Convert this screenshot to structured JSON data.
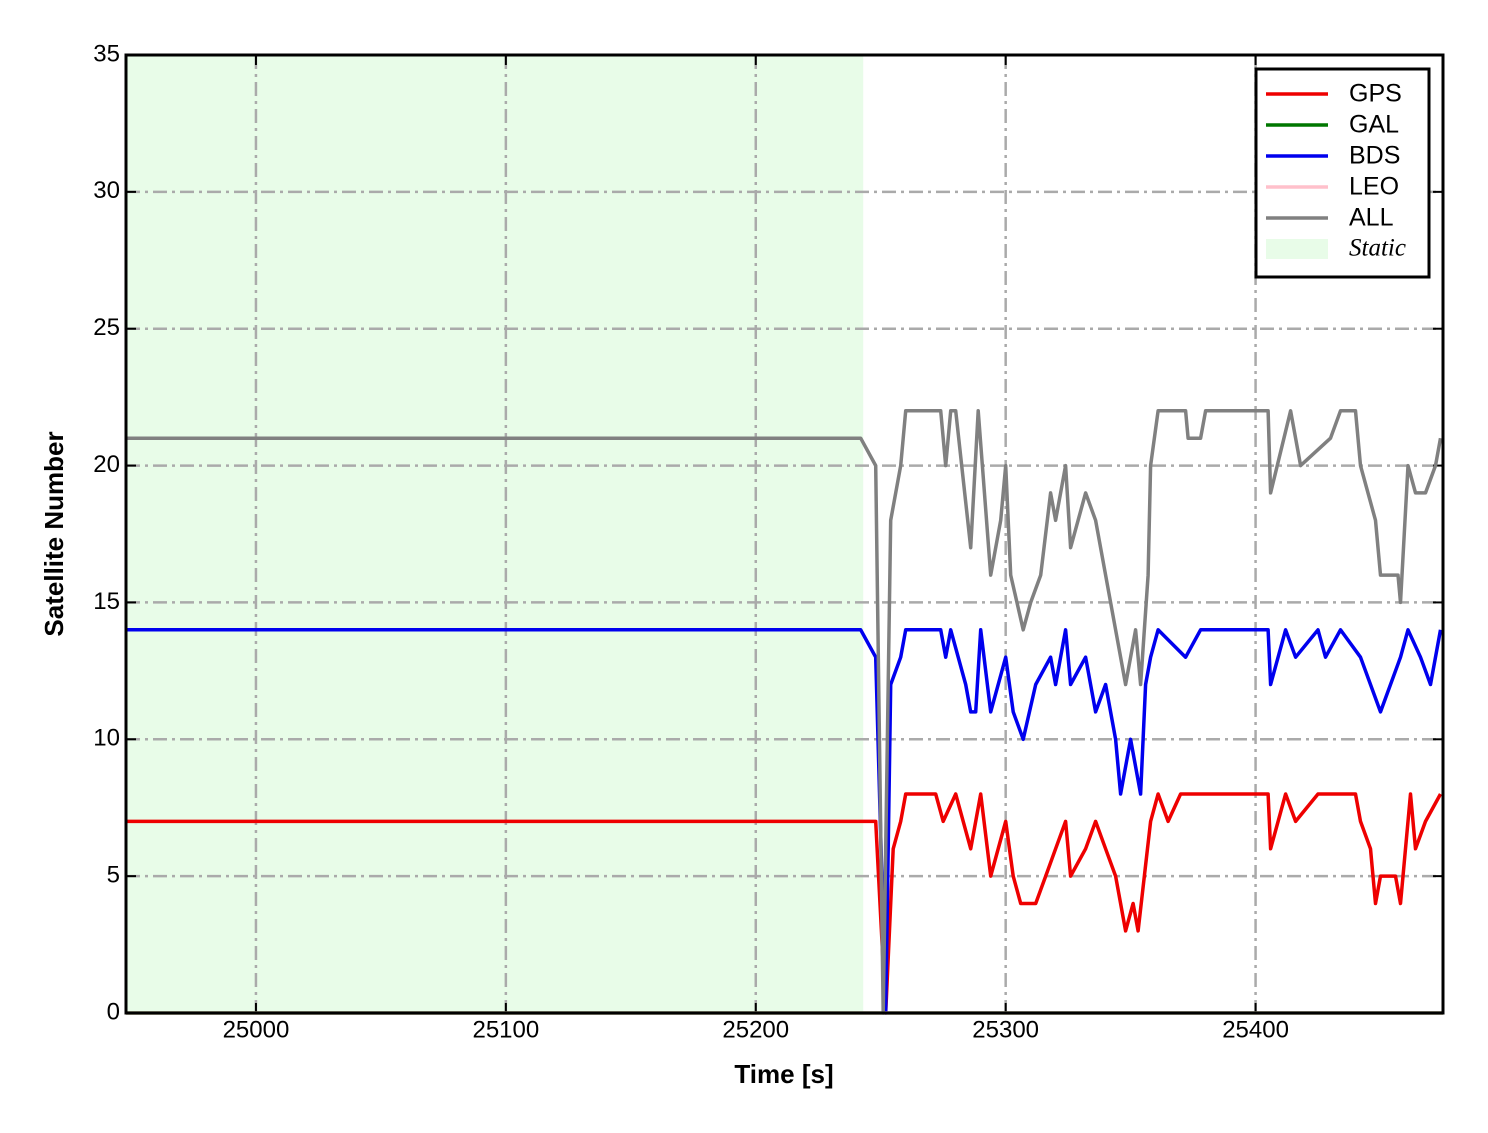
{
  "chart_data": {
    "type": "line",
    "xlabel": "Time [s]",
    "ylabel": "Satellite Number",
    "xlim": [
      24948,
      25475
    ],
    "ylim": [
      0,
      35
    ],
    "xticks": [
      25000,
      25100,
      25200,
      25300,
      25400
    ],
    "yticks": [
      0,
      5,
      10,
      15,
      20,
      25,
      30,
      35
    ],
    "grid": true,
    "legend": "upper right",
    "span": {
      "label": "Static",
      "color": "#e8fce8",
      "x": [
        24948,
        25243
      ]
    },
    "series": [
      {
        "name": "GPS",
        "color": "#ee0000",
        "x": [
          24948,
          25248,
          25252,
          25255,
          25258,
          25260,
          25272,
          25275,
          25280,
          25286,
          25290,
          25294,
          25300,
          25303,
          25306,
          25312,
          25316,
          25320,
          25324,
          25326,
          25332,
          25336,
          25340,
          25344,
          25346,
          25348,
          25351,
          25353,
          25358,
          25361,
          25365,
          25370,
          25405,
          25406,
          25412,
          25416,
          25425,
          25440,
          25442,
          25446,
          25448,
          25450,
          25456,
          25458,
          25462,
          25464,
          25468,
          25474
        ],
        "values": [
          7,
          7,
          0,
          6,
          7,
          8,
          8,
          7,
          8,
          6,
          8,
          5,
          7,
          5,
          4,
          4,
          5,
          6,
          7,
          5,
          6,
          7,
          6,
          5,
          4,
          3,
          4,
          3,
          7,
          8,
          7,
          8,
          8,
          6,
          8,
          7,
          8,
          8,
          7,
          6,
          4,
          5,
          5,
          4,
          8,
          6,
          7,
          8
        ]
      },
      {
        "name": "GAL",
        "color": "#007700",
        "x": [
          24948,
          25475
        ],
        "values": [
          0,
          0
        ]
      },
      {
        "name": "BDS",
        "color": "#0000ee",
        "x": [
          24948,
          25242,
          25248,
          25252,
          25254,
          25258,
          25260,
          25274,
          25276,
          25278,
          25284,
          25286,
          25288,
          25290,
          25294,
          25300,
          25303,
          25307,
          25312,
          25318,
          25320,
          25324,
          25326,
          25332,
          25336,
          25340,
          25344,
          25346,
          25350,
          25354,
          25356,
          25358,
          25361,
          25372,
          25378,
          25405,
          25406,
          25412,
          25416,
          25425,
          25428,
          25434,
          25442,
          25450,
          25458,
          25461,
          25466,
          25470,
          25474
        ],
        "values": [
          14,
          14,
          13,
          0,
          12,
          13,
          14,
          14,
          13,
          14,
          12,
          11,
          11,
          14,
          11,
          13,
          11,
          10,
          12,
          13,
          12,
          14,
          12,
          13,
          11,
          12,
          10,
          8,
          10,
          8,
          12,
          13,
          14,
          13,
          14,
          14,
          12,
          14,
          13,
          14,
          13,
          14,
          13,
          11,
          13,
          14,
          13,
          12,
          14
        ]
      },
      {
        "name": "LEO",
        "color": "#ffc0cb",
        "x": [
          24948,
          25475
        ],
        "values": [
          0,
          0
        ]
      },
      {
        "name": "ALL",
        "color": "#808080",
        "x": [
          24948,
          25242,
          25248,
          25251,
          25254,
          25258,
          25260,
          25274,
          25276,
          25278,
          25280,
          25286,
          25289,
          25294,
          25298,
          25300,
          25302,
          25307,
          25310,
          25314,
          25318,
          25320,
          25324,
          25326,
          25332,
          25336,
          25340,
          25344,
          25348,
          25352,
          25354,
          25357,
          25358,
          25361,
          25372,
          25373,
          25378,
          25380,
          25405,
          25406,
          25414,
          25418,
          25430,
          25434,
          25440,
          25442,
          25448,
          25450,
          25457,
          25458,
          25461,
          25464,
          25468,
          25472,
          25474
        ],
        "values": [
          21,
          21,
          20,
          0,
          18,
          20,
          22,
          22,
          20,
          22,
          22,
          17,
          22,
          16,
          18,
          20,
          16,
          14,
          15,
          16,
          19,
          18,
          20,
          17,
          19,
          18,
          16,
          14,
          12,
          14,
          12,
          16,
          20,
          22,
          22,
          21,
          21,
          22,
          22,
          19,
          22,
          20,
          21,
          22,
          22,
          20,
          18,
          16,
          16,
          15,
          20,
          19,
          19,
          20,
          21
        ]
      }
    ]
  }
}
